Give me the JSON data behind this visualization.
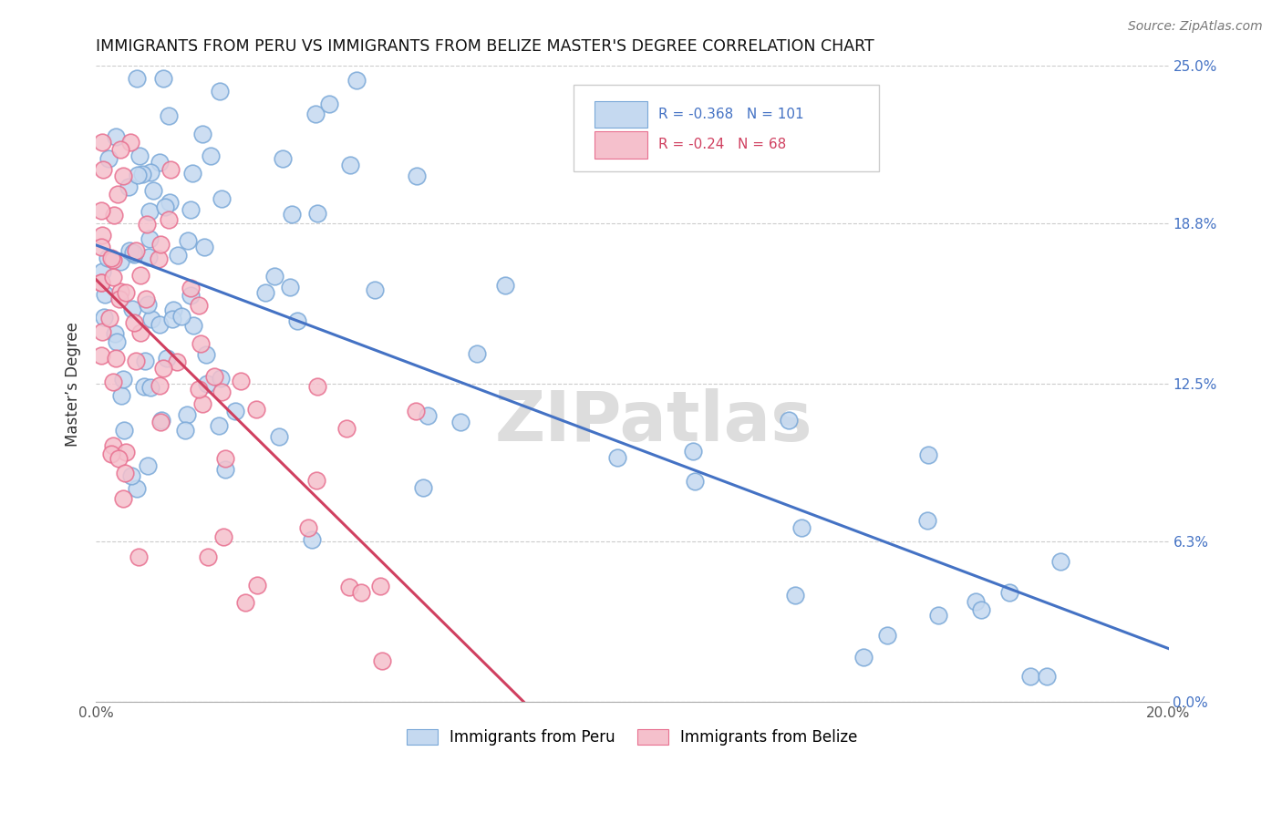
{
  "title": "IMMIGRANTS FROM PERU VS IMMIGRANTS FROM BELIZE MASTER'S DEGREE CORRELATION CHART",
  "source": "Source: ZipAtlas.com",
  "ylabel": "Master’s Degree",
  "xlabel_peru": "Immigrants from Peru",
  "xlabel_belize": "Immigrants from Belize",
  "xlim": [
    0.0,
    0.2
  ],
  "ylim": [
    0.0,
    0.25
  ],
  "peru_R": -0.368,
  "peru_N": 101,
  "belize_R": -0.24,
  "belize_N": 68,
  "peru_color": "#c5d9f0",
  "belize_color": "#f5c0cc",
  "peru_edge_color": "#7aA8D8",
  "belize_edge_color": "#E87090",
  "peru_line_color": "#4472C4",
  "belize_line_color": "#D04060",
  "watermark": "ZIPatlas",
  "background_color": "#ffffff",
  "grid_color": "#cccccc",
  "right_tick_color": "#4472C4"
}
